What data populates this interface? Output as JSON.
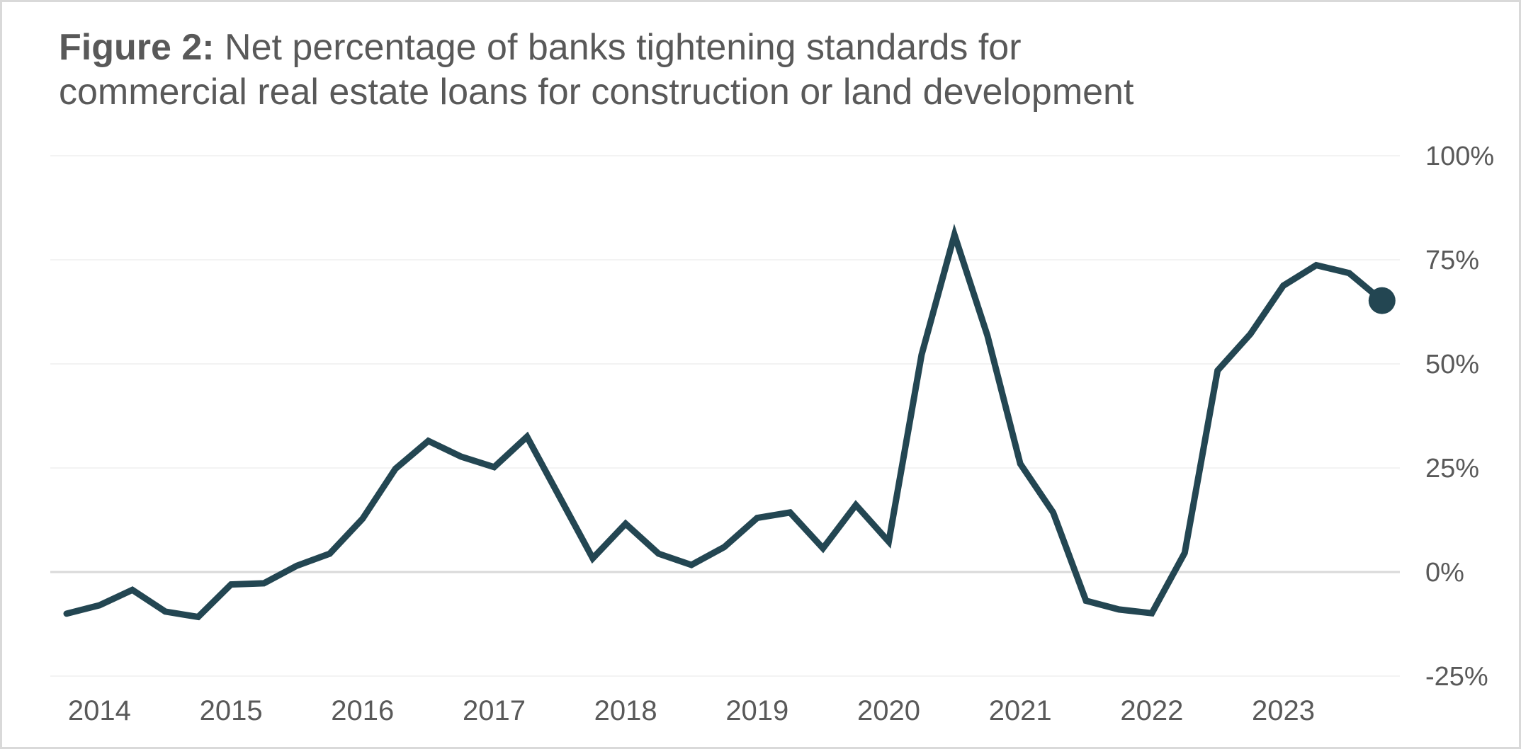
{
  "figure": {
    "label": "Figure 2:",
    "title_line1": " Net percentage of banks tightening standards for",
    "title_line2": "commercial real estate loans for construction or land development"
  },
  "colors": {
    "line": "#234652",
    "text": "#595959",
    "gridline": "#efefef",
    "zero_line": "#d9d9d9",
    "border": "#d9d9d9"
  },
  "chart_data": {
    "type": "line",
    "title": "Figure 2: Net percentage of banks tightening standards for commercial real estate loans for construction or land development",
    "xlabel": "",
    "ylabel": "",
    "y_axis_position": "right",
    "ylim": [
      -25,
      100
    ],
    "yticks": [
      -25,
      0,
      25,
      50,
      75,
      100
    ],
    "ytick_labels": [
      "-25%",
      "0%",
      "25%",
      "50%",
      "75%",
      "100%"
    ],
    "x_tick_labels": [
      "2014",
      "2015",
      "2016",
      "2017",
      "2018",
      "2019",
      "2020",
      "2021",
      "2022",
      "2023"
    ],
    "x_tick_indices": [
      1,
      5,
      9,
      13,
      17,
      21,
      25,
      29,
      33,
      37
    ],
    "grid": true,
    "legend": "none",
    "end_marker": true,
    "x": [
      "2013Q4",
      "2014Q1",
      "2014Q2",
      "2014Q3",
      "2014Q4",
      "2015Q1",
      "2015Q2",
      "2015Q3",
      "2015Q4",
      "2016Q1",
      "2016Q2",
      "2016Q3",
      "2016Q4",
      "2017Q1",
      "2017Q2",
      "2017Q3",
      "2017Q4",
      "2018Q1",
      "2018Q2",
      "2018Q3",
      "2018Q4",
      "2019Q1",
      "2019Q2",
      "2019Q3",
      "2019Q4",
      "2020Q1",
      "2020Q2",
      "2020Q3",
      "2020Q4",
      "2021Q1",
      "2021Q2",
      "2021Q3",
      "2021Q4",
      "2022Q1",
      "2022Q2",
      "2022Q3",
      "2022Q4",
      "2023Q1",
      "2023Q2",
      "2023Q3",
      "2023Q4"
    ],
    "series": [
      {
        "name": "Net percentage tightening (construction & land development CRE)",
        "values": [
          -10,
          -8,
          -4.3,
          -9.5,
          -10.8,
          -3,
          -2.7,
          1.5,
          4.4,
          12.8,
          24.8,
          31.5,
          27.7,
          25.2,
          32.5,
          17.9,
          3.3,
          11.6,
          4.4,
          1.7,
          6,
          13,
          14.3,
          5.7,
          16.1,
          7.3,
          52.2,
          81,
          56.8,
          26,
          14.3,
          -6.9,
          -9,
          -9.9,
          4.6,
          48.4,
          57.2,
          68.8,
          73.7,
          71.8,
          65.2
        ]
      }
    ]
  }
}
